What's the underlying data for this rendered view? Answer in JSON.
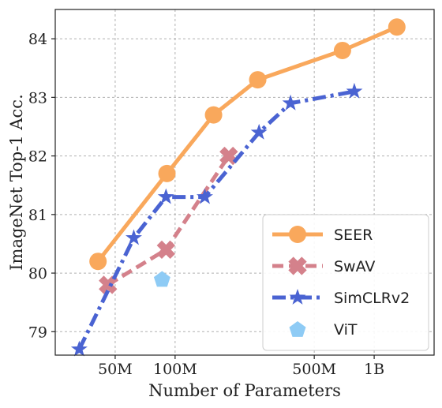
{
  "chart_data": {
    "type": "line",
    "xscale": "log",
    "xlabel": "Number of Parameters",
    "ylabel": "ImageNet Top-1 Acc.",
    "xlim": [
      25000000,
      2000000000
    ],
    "ylim": [
      78.6,
      84.5
    ],
    "grid": true,
    "legend_position": "bottom-right",
    "x_ticks": [
      {
        "value": 50000000,
        "label": "50M"
      },
      {
        "value": 100000000,
        "label": "100M"
      },
      {
        "value": 500000000,
        "label": "500M"
      },
      {
        "value": 1000000000,
        "label": "1B"
      }
    ],
    "y_ticks": [
      {
        "value": 79,
        "label": "79"
      },
      {
        "value": 80,
        "label": "80"
      },
      {
        "value": 81,
        "label": "81"
      },
      {
        "value": 82,
        "label": "82"
      },
      {
        "value": 83,
        "label": "83"
      },
      {
        "value": 84,
        "label": "84"
      }
    ],
    "series": [
      {
        "name": "SEER",
        "color": "#f9a85c",
        "marker": "circle",
        "line": "solid",
        "x": [
          41000000,
          91000000,
          156000000,
          260000000,
          693000000,
          1300000000
        ],
        "y": [
          80.2,
          81.7,
          82.7,
          83.3,
          83.8,
          84.2
        ]
      },
      {
        "name": "SwAV",
        "color": "#d4818b",
        "marker": "x",
        "line": "dashed",
        "x": [
          46000000,
          90000000,
          186000000
        ],
        "y": [
          79.8,
          80.4,
          82.0
        ]
      },
      {
        "name": "SimCLRv2",
        "color": "#4a63d2",
        "marker": "star",
        "line": "dashdot",
        "x": [
          33000000,
          62000000,
          90000000,
          141000000,
          264000000,
          380000000,
          795000000
        ],
        "y": [
          78.7,
          80.6,
          81.3,
          81.3,
          82.4,
          82.9,
          83.1
        ]
      },
      {
        "name": "ViT",
        "color": "#8ecbf5",
        "marker": "pentagon",
        "line": "none",
        "x": [
          86000000
        ],
        "y": [
          79.9
        ]
      }
    ]
  }
}
